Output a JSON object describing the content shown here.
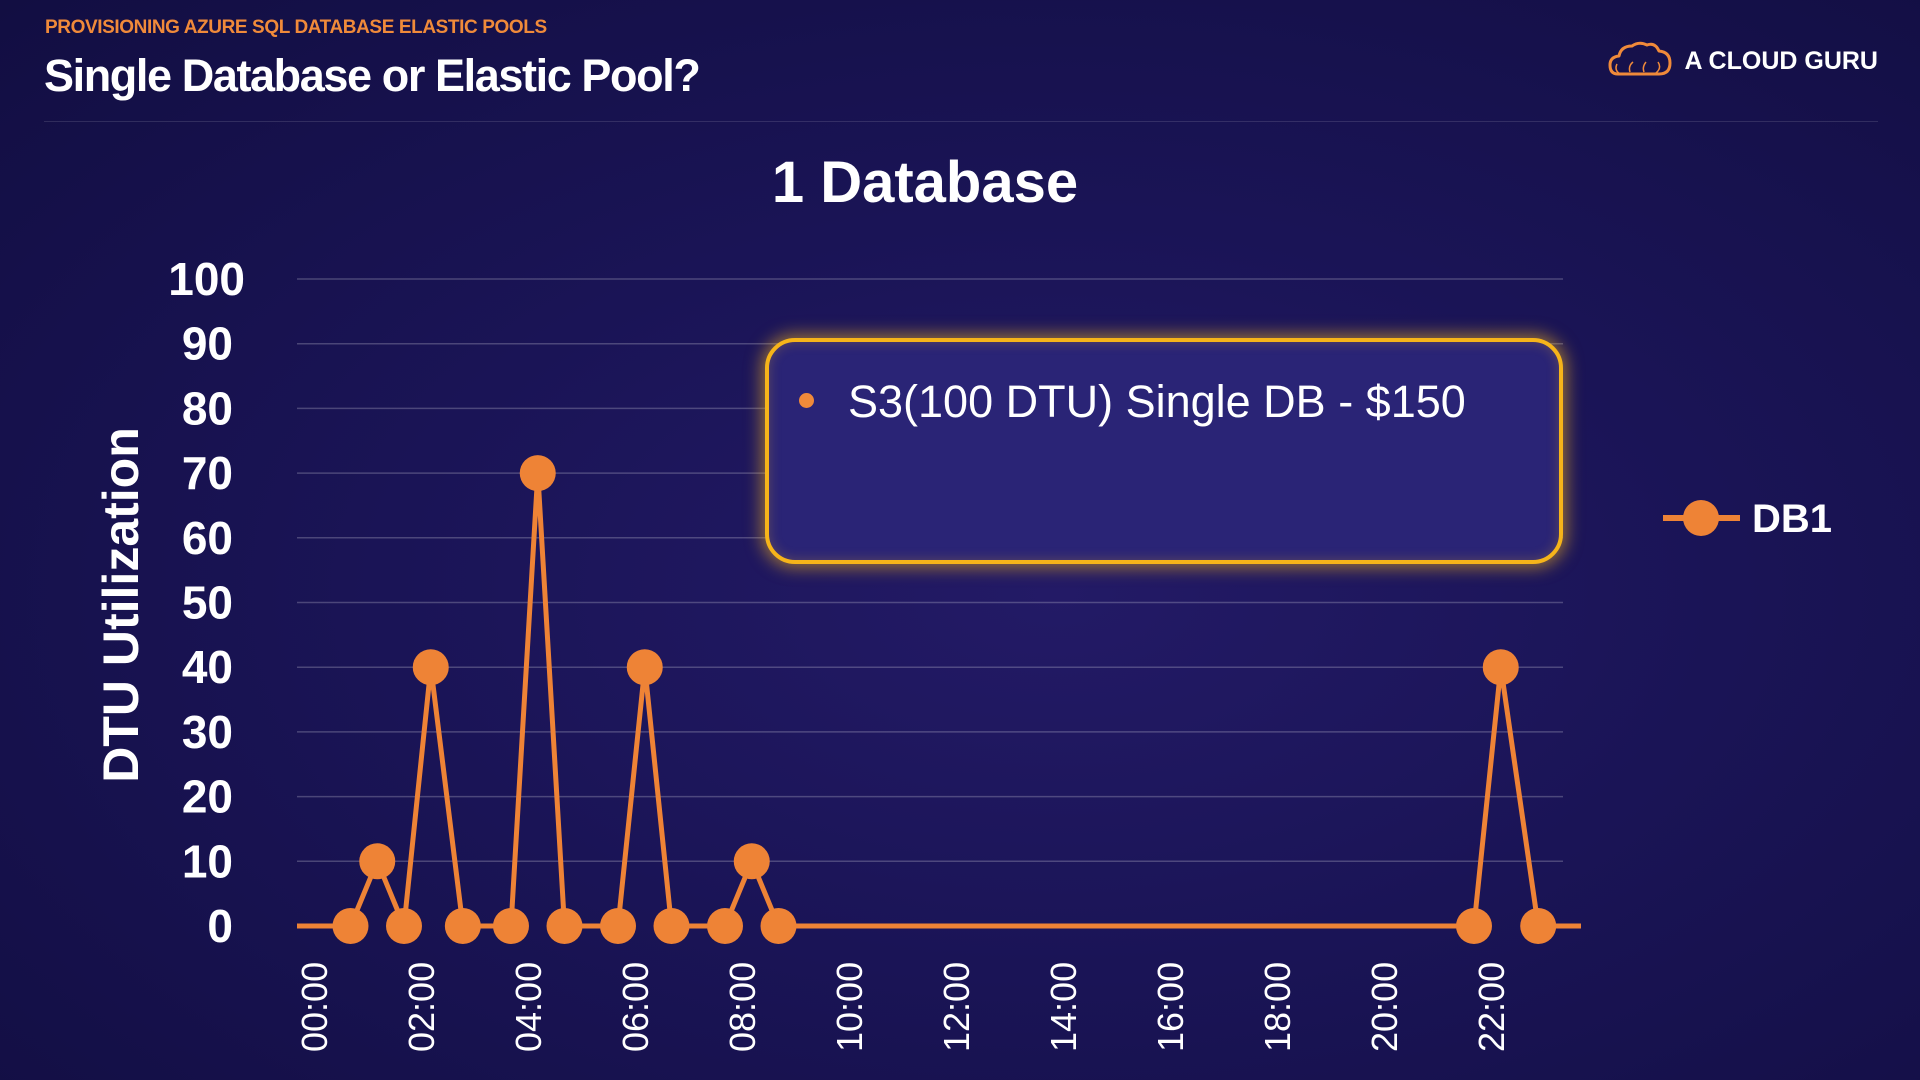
{
  "header": {
    "section_label": "PROVISIONING AZURE SQL DATABASE ELASTIC POOLS",
    "title": "Single Database or Elastic Pool?",
    "brand_name": "A CLOUD GURU",
    "brand_icon": "cloud-icon"
  },
  "callout": {
    "text": "S3(100 DTU) Single DB - $150"
  },
  "colors": {
    "background": "#1a1456",
    "accent_orange": "#f08a3a",
    "series_line": "#ee8336",
    "callout_border": "#f6b41a",
    "callout_fill": "#2a2476"
  },
  "chart_data": {
    "type": "line",
    "title": "1 Database",
    "xlabel": "",
    "ylabel": "DTU Utilization",
    "ylim": [
      0,
      100
    ],
    "xlim": [
      0,
      24
    ],
    "x_ticks": [
      "00:00",
      "02:00",
      "04:00",
      "06:00",
      "08:00",
      "10:00",
      "12:00",
      "14:00",
      "16:00",
      "18:00",
      "20:00",
      "22:00"
    ],
    "y_ticks": [
      0,
      10,
      20,
      30,
      40,
      50,
      60,
      70,
      80,
      90,
      100
    ],
    "grid": true,
    "legend_position": "right",
    "series": [
      {
        "name": "DB1",
        "color": "#ee8336",
        "line_start": [
          0,
          0
        ],
        "line_end": [
          24,
          0
        ],
        "points": [
          {
            "x": 1.0,
            "y": 0
          },
          {
            "x": 1.5,
            "y": 10
          },
          {
            "x": 2.0,
            "y": 0
          },
          {
            "x": 2.5,
            "y": 40
          },
          {
            "x": 3.1,
            "y": 0
          },
          {
            "x": 4.0,
            "y": 0
          },
          {
            "x": 4.5,
            "y": 70
          },
          {
            "x": 5.0,
            "y": 0
          },
          {
            "x": 6.0,
            "y": 0
          },
          {
            "x": 6.5,
            "y": 40
          },
          {
            "x": 7.0,
            "y": 0
          },
          {
            "x": 8.0,
            "y": 0
          },
          {
            "x": 8.5,
            "y": 10
          },
          {
            "x": 9.0,
            "y": 0
          },
          {
            "x": 22.0,
            "y": 0
          },
          {
            "x": 22.5,
            "y": 40
          },
          {
            "x": 23.2,
            "y": 0
          }
        ]
      }
    ]
  }
}
